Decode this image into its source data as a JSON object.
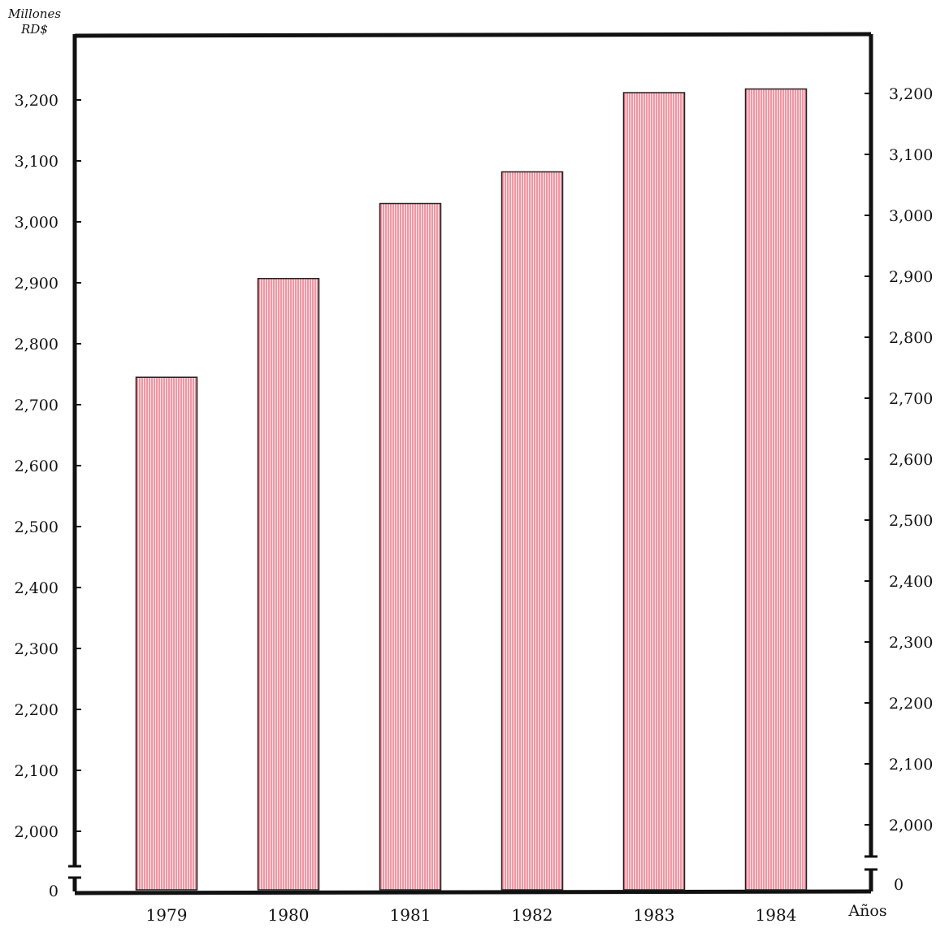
{
  "chart_data": {
    "type": "bar",
    "title": "",
    "ylabel_line1": "Millones",
    "ylabel_line2": "RD$",
    "xlabel": "Años",
    "categories": [
      "1979",
      "1980",
      "1981",
      "1982",
      "1983",
      "1984"
    ],
    "values": [
      2745,
      2907,
      3030,
      3082,
      3212,
      3218
    ],
    "ylim": [
      2000,
      3200
    ],
    "y_ticks": [
      2000,
      2100,
      2200,
      2300,
      2400,
      2500,
      2600,
      2700,
      2800,
      2900,
      3000,
      3100,
      3200
    ],
    "y_tick_labels": [
      "2,000",
      "2,100",
      "2,200",
      "2,300",
      "2,400",
      "2,500",
      "2,600",
      "2,700",
      "2,800",
      "2,900",
      "3,000",
      "3,100",
      "3,200"
    ],
    "zero_label": "0",
    "axis_break": true,
    "bar_color": "#e04a5f",
    "bar_fill_color": "#fbe4e7",
    "axis_color": "#111111",
    "grid": false,
    "legend": "none"
  }
}
